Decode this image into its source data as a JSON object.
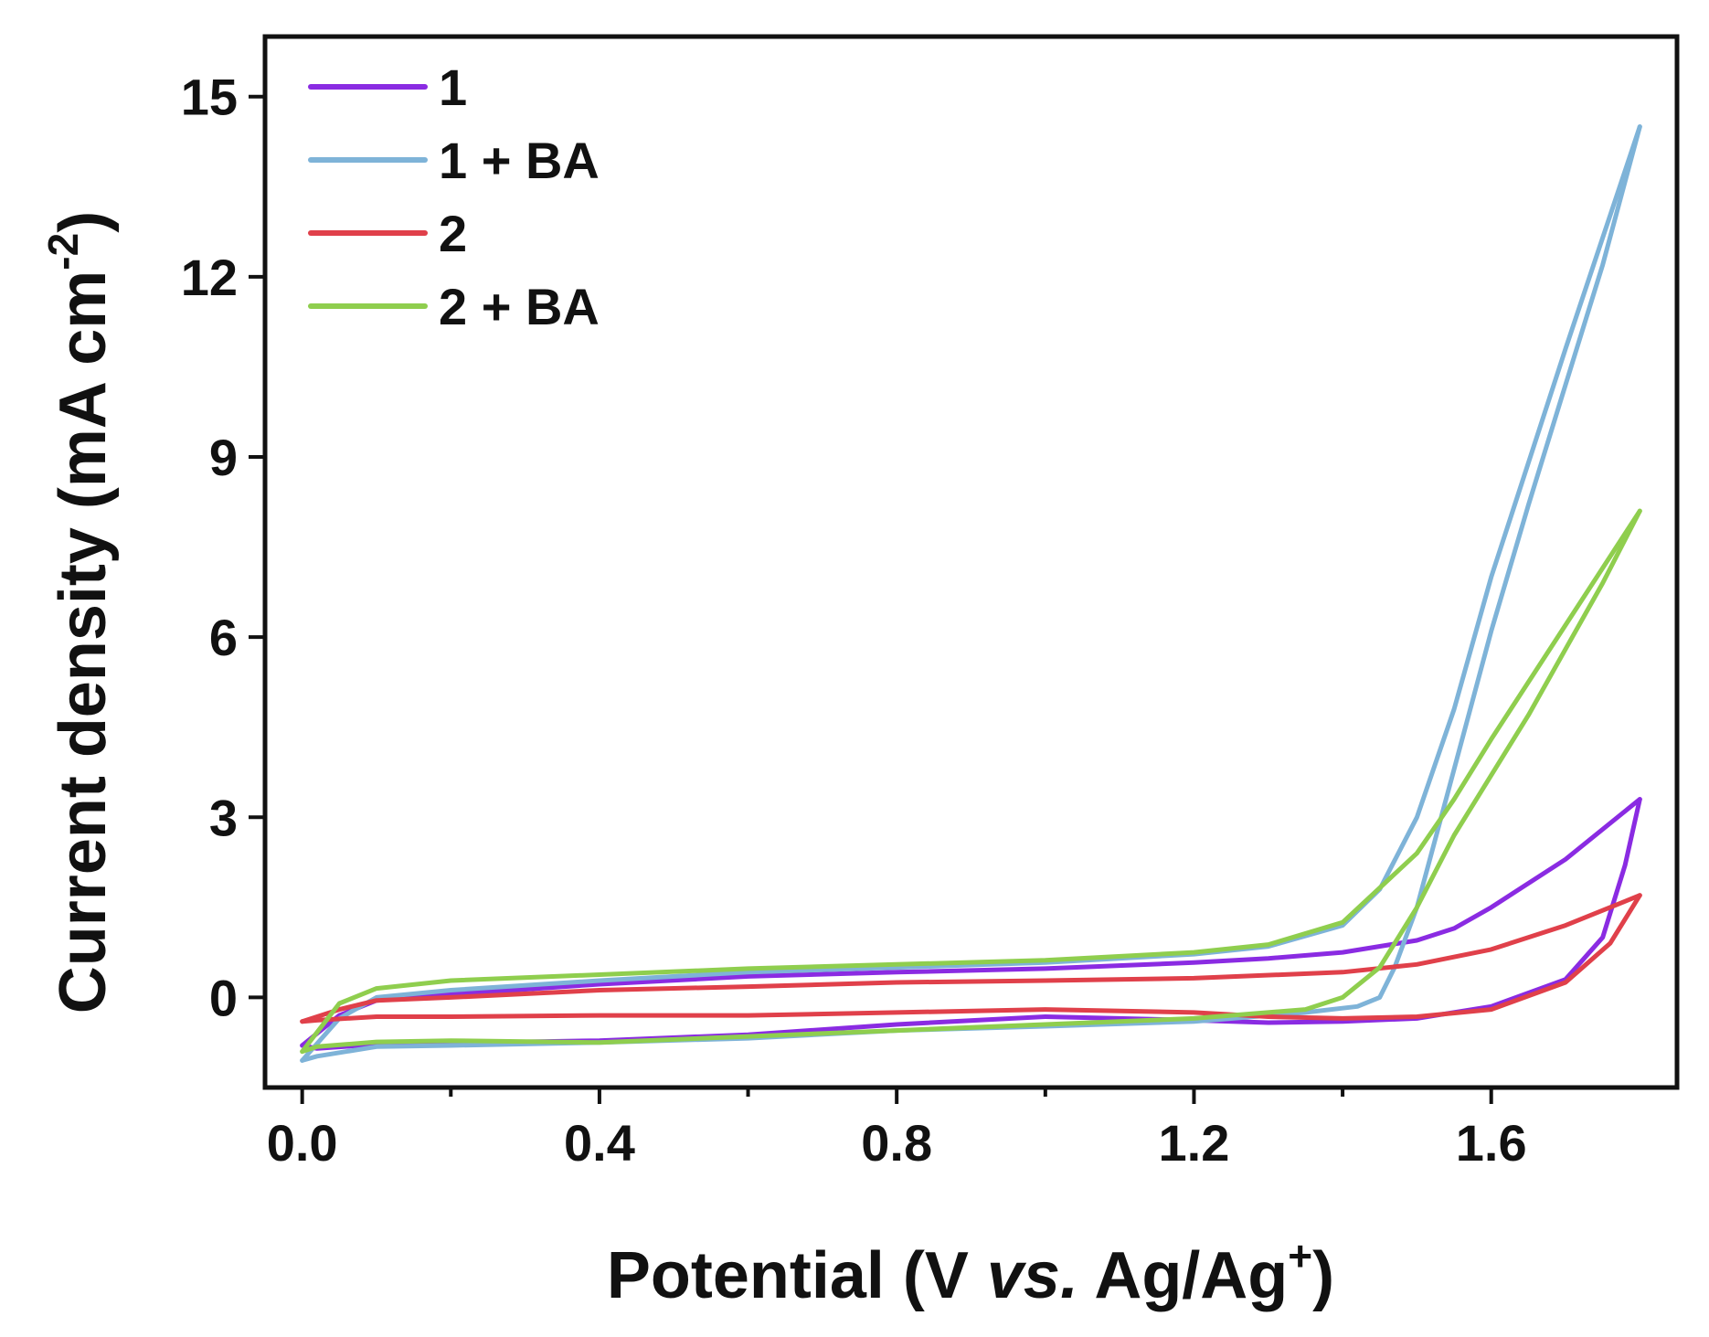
{
  "chart_data": {
    "type": "line",
    "xlabel": "Potential (V vs. Ag/Ag+)",
    "xlabel_parts": {
      "main": "Potential (V ",
      "italic": "vs.",
      "after": " Ag/Ag",
      "sup": "+",
      "close": ")"
    },
    "ylabel": "Current density (mA cm-2)",
    "ylabel_parts": {
      "main": "Current density (mA cm",
      "sup": "-2",
      "close": ")"
    },
    "xlim": [
      -0.05,
      1.85
    ],
    "ylim": [
      -1.5,
      16.0
    ],
    "x_ticks": [
      0.0,
      0.4,
      0.8,
      1.2,
      1.6
    ],
    "x_tick_labels": [
      "0.0",
      "0.4",
      "0.8",
      "1.2",
      "1.6"
    ],
    "x_minor_ticks": [
      0.2,
      0.6,
      1.0,
      1.4
    ],
    "y_ticks": [
      0,
      3,
      6,
      9,
      12,
      15
    ],
    "y_tick_labels": [
      "0",
      "3",
      "6",
      "9",
      "12",
      "15"
    ],
    "legend_position": "top-left",
    "series": [
      {
        "name": "1",
        "color": "#8a2be2",
        "forward": [
          [
            0.0,
            -0.8
          ],
          [
            0.05,
            -0.3
          ],
          [
            0.1,
            -0.05
          ],
          [
            0.2,
            0.05
          ],
          [
            0.4,
            0.22
          ],
          [
            0.6,
            0.35
          ],
          [
            0.8,
            0.42
          ],
          [
            1.0,
            0.48
          ],
          [
            1.2,
            0.58
          ],
          [
            1.3,
            0.65
          ],
          [
            1.4,
            0.75
          ],
          [
            1.5,
            0.95
          ],
          [
            1.55,
            1.15
          ],
          [
            1.6,
            1.5
          ],
          [
            1.7,
            2.3
          ],
          [
            1.8,
            3.3
          ]
        ],
        "reverse": [
          [
            1.8,
            3.3
          ],
          [
            1.78,
            2.2
          ],
          [
            1.75,
            1.0
          ],
          [
            1.7,
            0.3
          ],
          [
            1.6,
            -0.15
          ],
          [
            1.5,
            -0.35
          ],
          [
            1.4,
            -0.4
          ],
          [
            1.3,
            -0.42
          ],
          [
            1.2,
            -0.38
          ],
          [
            1.0,
            -0.32
          ],
          [
            0.8,
            -0.45
          ],
          [
            0.6,
            -0.62
          ],
          [
            0.4,
            -0.72
          ],
          [
            0.2,
            -0.76
          ],
          [
            0.1,
            -0.78
          ],
          [
            0.02,
            -0.85
          ],
          [
            0.0,
            -0.8
          ]
        ]
      },
      {
        "name": "1 + BA",
        "color": "#7eb3d8",
        "forward": [
          [
            0.0,
            -1.05
          ],
          [
            0.05,
            -0.35
          ],
          [
            0.1,
            0.0
          ],
          [
            0.2,
            0.12
          ],
          [
            0.4,
            0.28
          ],
          [
            0.6,
            0.42
          ],
          [
            0.8,
            0.5
          ],
          [
            1.0,
            0.58
          ],
          [
            1.2,
            0.72
          ],
          [
            1.3,
            0.85
          ],
          [
            1.4,
            1.2
          ],
          [
            1.45,
            1.8
          ],
          [
            1.5,
            3.0
          ],
          [
            1.55,
            4.8
          ],
          [
            1.6,
            7.0
          ],
          [
            1.7,
            10.8
          ],
          [
            1.8,
            14.5
          ]
        ],
        "reverse": [
          [
            1.8,
            14.5
          ],
          [
            1.75,
            12.2
          ],
          [
            1.7,
            10.2
          ],
          [
            1.65,
            8.2
          ],
          [
            1.6,
            6.1
          ],
          [
            1.55,
            3.8
          ],
          [
            1.5,
            1.5
          ],
          [
            1.47,
            0.5
          ],
          [
            1.45,
            0.0
          ],
          [
            1.42,
            -0.15
          ],
          [
            1.35,
            -0.25
          ],
          [
            1.2,
            -0.4
          ],
          [
            1.0,
            -0.48
          ],
          [
            0.8,
            -0.55
          ],
          [
            0.6,
            -0.68
          ],
          [
            0.4,
            -0.75
          ],
          [
            0.2,
            -0.8
          ],
          [
            0.1,
            -0.82
          ],
          [
            0.02,
            -0.98
          ],
          [
            0.0,
            -1.05
          ]
        ]
      },
      {
        "name": "2",
        "color": "#e0404a",
        "forward": [
          [
            0.0,
            -0.4
          ],
          [
            0.05,
            -0.2
          ],
          [
            0.1,
            -0.05
          ],
          [
            0.2,
            0.0
          ],
          [
            0.4,
            0.12
          ],
          [
            0.6,
            0.18
          ],
          [
            0.8,
            0.25
          ],
          [
            1.0,
            0.28
          ],
          [
            1.2,
            0.32
          ],
          [
            1.4,
            0.42
          ],
          [
            1.5,
            0.55
          ],
          [
            1.6,
            0.8
          ],
          [
            1.7,
            1.2
          ],
          [
            1.8,
            1.7
          ]
        ],
        "reverse": [
          [
            1.8,
            1.7
          ],
          [
            1.76,
            0.9
          ],
          [
            1.7,
            0.25
          ],
          [
            1.6,
            -0.2
          ],
          [
            1.5,
            -0.32
          ],
          [
            1.4,
            -0.35
          ],
          [
            1.3,
            -0.32
          ],
          [
            1.2,
            -0.25
          ],
          [
            1.0,
            -0.2
          ],
          [
            0.8,
            -0.25
          ],
          [
            0.6,
            -0.3
          ],
          [
            0.4,
            -0.3
          ],
          [
            0.2,
            -0.32
          ],
          [
            0.1,
            -0.32
          ],
          [
            0.02,
            -0.38
          ],
          [
            0.0,
            -0.4
          ]
        ]
      },
      {
        "name": "2 + BA",
        "color": "#8fce4e",
        "forward": [
          [
            0.0,
            -0.9
          ],
          [
            0.05,
            -0.1
          ],
          [
            0.1,
            0.15
          ],
          [
            0.2,
            0.28
          ],
          [
            0.4,
            0.38
          ],
          [
            0.6,
            0.48
          ],
          [
            0.8,
            0.55
          ],
          [
            1.0,
            0.62
          ],
          [
            1.2,
            0.75
          ],
          [
            1.3,
            0.88
          ],
          [
            1.4,
            1.25
          ],
          [
            1.5,
            2.4
          ],
          [
            1.55,
            3.3
          ],
          [
            1.6,
            4.3
          ],
          [
            1.7,
            6.2
          ],
          [
            1.8,
            8.1
          ]
        ],
        "reverse": [
          [
            1.8,
            8.1
          ],
          [
            1.75,
            6.9
          ],
          [
            1.7,
            5.8
          ],
          [
            1.65,
            4.7
          ],
          [
            1.6,
            3.7
          ],
          [
            1.55,
            2.7
          ],
          [
            1.5,
            1.5
          ],
          [
            1.45,
            0.5
          ],
          [
            1.4,
            0.0
          ],
          [
            1.35,
            -0.2
          ],
          [
            1.2,
            -0.35
          ],
          [
            1.0,
            -0.45
          ],
          [
            0.8,
            -0.55
          ],
          [
            0.6,
            -0.65
          ],
          [
            0.4,
            -0.75
          ],
          [
            0.2,
            -0.72
          ],
          [
            0.1,
            -0.74
          ],
          [
            0.02,
            -0.82
          ],
          [
            0.0,
            -0.9
          ]
        ]
      }
    ]
  }
}
